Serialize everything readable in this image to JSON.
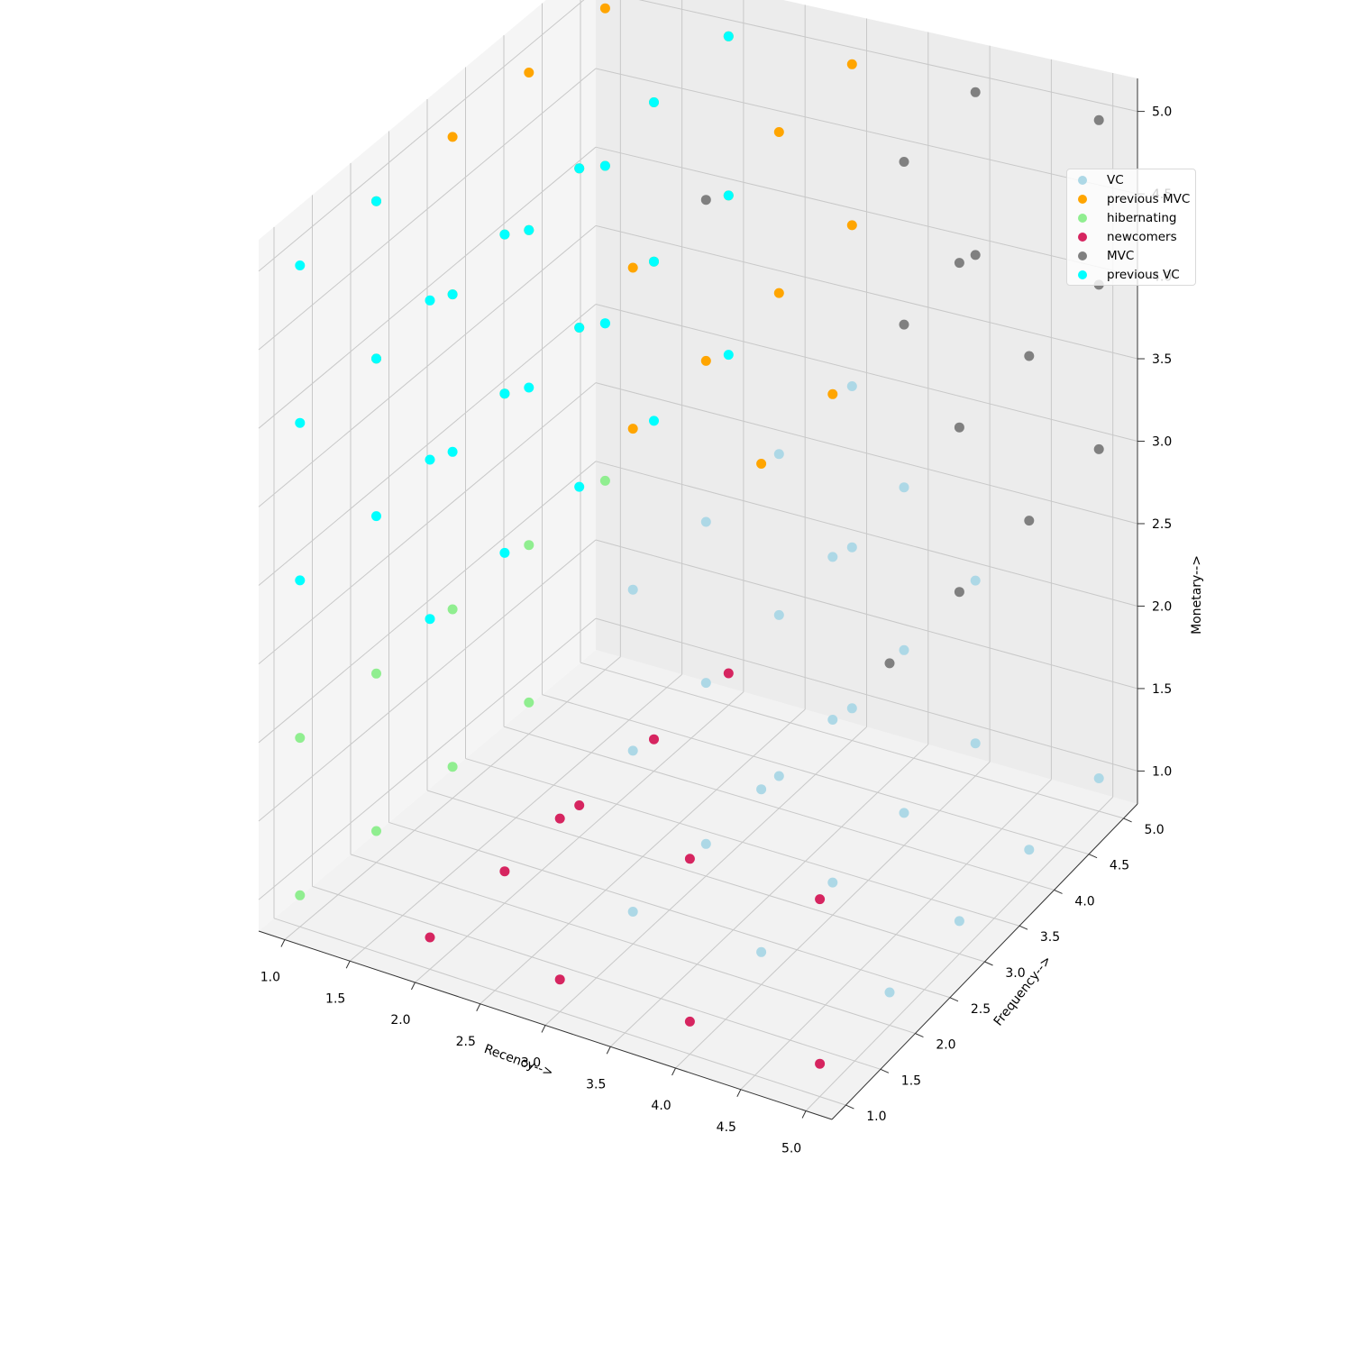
{
  "chart_data": {
    "type": "scatter",
    "projection": "3d",
    "title": "",
    "xlabel": "Recency-->",
    "ylabel": "Frequency-->",
    "zlabel": "Monetary-->",
    "xlim": [
      0.8,
      5.2
    ],
    "ylim": [
      0.8,
      5.2
    ],
    "zlim": [
      0.8,
      5.2
    ],
    "xticks": [
      "1.0",
      "1.5",
      "2.0",
      "2.5",
      "3.0",
      "3.5",
      "4.0",
      "4.5",
      "5.0"
    ],
    "yticks": [
      "1.0",
      "1.5",
      "2.0",
      "2.5",
      "3.0",
      "3.5",
      "4.0",
      "4.5",
      "5.0"
    ],
    "zticks": [
      "1.0",
      "1.5",
      "2.0",
      "2.5",
      "3.0",
      "3.5",
      "4.0",
      "4.5",
      "5.0"
    ],
    "grid": true,
    "legend_position": "top-right",
    "series": [
      {
        "name": "VC",
        "color": "#add8e6",
        "points": [
          [
            3,
            2,
            1
          ],
          [
            3,
            3,
            1
          ],
          [
            3,
            4,
            1
          ],
          [
            3,
            5,
            1
          ],
          [
            3,
            2,
            2
          ],
          [
            3,
            3,
            2
          ],
          [
            3,
            4,
            2
          ],
          [
            3,
            5,
            2
          ],
          [
            3,
            2,
            3
          ],
          [
            3,
            3,
            3
          ],
          [
            3,
            4,
            3
          ],
          [
            3,
            5,
            3
          ],
          [
            4,
            2,
            1
          ],
          [
            4,
            3,
            1
          ],
          [
            4,
            4,
            1
          ],
          [
            4,
            5,
            1
          ],
          [
            4,
            2,
            2
          ],
          [
            4,
            3,
            2
          ],
          [
            4,
            4,
            2
          ],
          [
            4,
            5,
            2
          ],
          [
            4,
            3,
            3
          ],
          [
            4,
            4,
            3
          ],
          [
            5,
            2,
            1
          ],
          [
            5,
            3,
            1
          ],
          [
            5,
            4,
            1
          ],
          [
            5,
            5,
            1
          ]
        ]
      },
      {
        "name": "previous MVC",
        "color": "#ffa500",
        "points": [
          [
            1,
            2,
            4
          ],
          [
            1,
            3,
            4
          ],
          [
            1,
            4,
            4
          ],
          [
            1,
            5,
            4
          ],
          [
            1,
            2,
            5
          ],
          [
            1,
            3,
            5
          ],
          [
            1,
            4,
            5
          ],
          [
            1,
            5,
            5
          ],
          [
            2,
            2,
            4
          ],
          [
            2,
            3,
            4
          ],
          [
            2,
            4,
            4
          ],
          [
            2,
            5,
            4
          ],
          [
            2,
            2,
            5
          ],
          [
            2,
            3,
            5
          ],
          [
            2,
            4,
            5
          ],
          [
            2,
            5,
            5
          ],
          [
            3,
            2,
            4
          ],
          [
            3,
            3,
            4
          ],
          [
            3,
            4,
            4
          ],
          [
            3,
            5,
            4
          ],
          [
            3,
            2,
            5
          ],
          [
            3,
            4,
            5
          ],
          [
            3,
            5,
            5
          ],
          [
            4,
            2,
            4
          ],
          [
            4,
            3,
            4
          ]
        ]
      },
      {
        "name": "hibernating",
        "color": "#90ee90",
        "points": [
          [
            1,
            1,
            1
          ],
          [
            1,
            2,
            1
          ],
          [
            1,
            3,
            1
          ],
          [
            1,
            4,
            1
          ],
          [
            1,
            1,
            2
          ],
          [
            1,
            2,
            2
          ],
          [
            1,
            3,
            2
          ],
          [
            1,
            4,
            2
          ],
          [
            1,
            5,
            2
          ]
        ]
      },
      {
        "name": "newcomers",
        "color": "#d62560",
        "points": [
          [
            2,
            1,
            1
          ],
          [
            2,
            2,
            1
          ],
          [
            2,
            3,
            1
          ],
          [
            2,
            4,
            1
          ],
          [
            2,
            5,
            1
          ],
          [
            3,
            1,
            1
          ],
          [
            3,
            1,
            2
          ],
          [
            4,
            1,
            1
          ],
          [
            4,
            1,
            2
          ],
          [
            5,
            1,
            1
          ],
          [
            5,
            1,
            2
          ]
        ]
      },
      {
        "name": "MVC",
        "color": "#808080",
        "points": [
          [
            3,
            3,
            5
          ],
          [
            4,
            4,
            4
          ],
          [
            4,
            4,
            5
          ],
          [
            4,
            5,
            4
          ],
          [
            4,
            5,
            5
          ],
          [
            5,
            2,
            3
          ],
          [
            5,
            3,
            3
          ],
          [
            5,
            4,
            3
          ],
          [
            5,
            5,
            3
          ],
          [
            5,
            3,
            4
          ],
          [
            5,
            4,
            4
          ],
          [
            5,
            5,
            4
          ],
          [
            5,
            3,
            5
          ],
          [
            5,
            5,
            5
          ]
        ]
      },
      {
        "name": "previous VC",
        "color": "#00ffff",
        "points": [
          [
            1,
            1,
            3
          ],
          [
            1,
            2,
            3
          ],
          [
            1,
            3,
            3
          ],
          [
            1,
            4,
            3
          ],
          [
            1,
            5,
            3
          ],
          [
            1,
            1,
            4
          ],
          [
            1,
            2,
            4
          ],
          [
            1,
            3,
            4
          ],
          [
            1,
            4,
            4
          ],
          [
            1,
            5,
            4
          ],
          [
            1,
            1,
            5
          ],
          [
            1,
            2,
            5
          ],
          [
            2,
            1,
            3
          ],
          [
            2,
            2,
            3
          ],
          [
            2,
            3,
            3
          ],
          [
            2,
            4,
            3
          ],
          [
            2,
            5,
            3
          ],
          [
            2,
            1,
            4
          ],
          [
            2,
            2,
            4
          ],
          [
            2,
            3,
            4
          ],
          [
            2,
            4,
            4
          ],
          [
            2,
            5,
            4
          ],
          [
            2,
            1,
            5
          ],
          [
            2,
            2,
            5
          ],
          [
            2,
            3,
            5
          ],
          [
            2,
            4,
            5
          ],
          [
            2,
            5,
            5
          ],
          [
            1,
            5,
            3
          ]
        ]
      }
    ]
  }
}
